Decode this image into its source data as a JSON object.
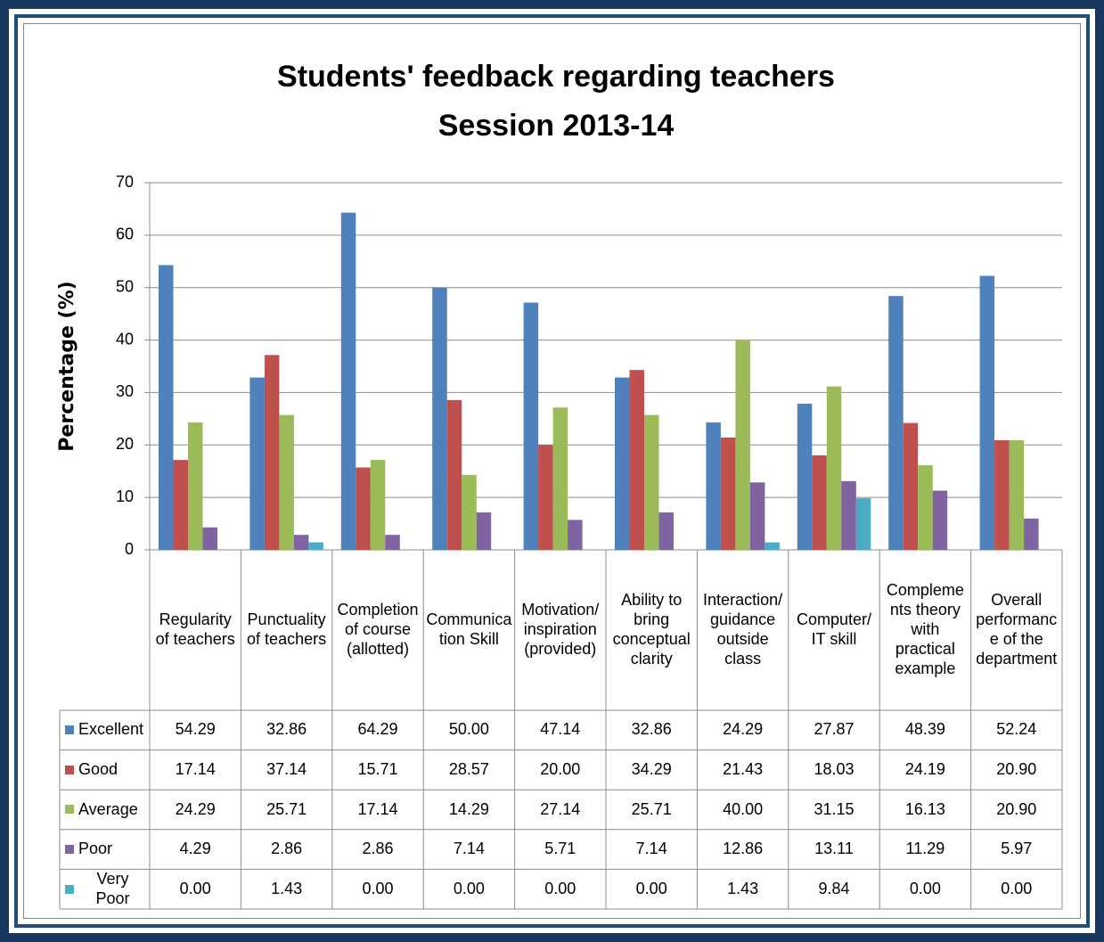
{
  "chart_data": {
    "type": "bar",
    "title": "Students' feedback regarding teachers",
    "subtitle": "Session 2013-14",
    "y_label": "Percentage (%)",
    "categories": [
      "Regularity of teachers",
      "Punctuality of teachers",
      "Completion of course (allotted)",
      "Communication Skill",
      "Motivation/ inspiration (provided)",
      "Ability to bring conceptual clarity",
      "Interaction/ guidance outside class",
      "Computer/ IT skill",
      "Complements theory with practical example",
      "Overall performance of the department"
    ],
    "series": [
      {
        "name": "Excellent",
        "color": "#4f81bd",
        "values": [
          54.29,
          32.86,
          64.29,
          50,
          47.14,
          32.86,
          24.29,
          27.87,
          48.39,
          52.24
        ],
        "value_labels": [
          "54.29",
          "32.86",
          "64.29",
          "50.00",
          "47.14",
          "32.86",
          "24.29",
          "27.87",
          "48.39",
          "52.24"
        ]
      },
      {
        "name": "Good",
        "color": "#c0504d",
        "values": [
          17.14,
          37.14,
          15.71,
          28.57,
          20,
          34.29,
          21.43,
          18.03,
          24.19,
          20.9
        ],
        "value_labels": [
          "17.14",
          "37.14",
          "15.71",
          "28.57",
          "20.00",
          "34.29",
          "21.43",
          "18.03",
          "24.19",
          "20.90"
        ]
      },
      {
        "name": "Average",
        "color": "#9bbb59",
        "values": [
          24.29,
          25.71,
          17.14,
          14.29,
          27.14,
          25.71,
          40,
          31.15,
          16.13,
          20.9
        ],
        "value_labels": [
          "24.29",
          "25.71",
          "17.14",
          "14.29",
          "27.14",
          "25.71",
          "40.00",
          "31.15",
          "16.13",
          "20.90"
        ]
      },
      {
        "name": "Poor",
        "color": "#8064a2",
        "values": [
          4.29,
          2.86,
          2.86,
          7.14,
          5.71,
          7.14,
          12.86,
          13.11,
          11.29,
          5.97
        ],
        "value_labels": [
          "4.29",
          "2.86",
          "2.86",
          "7.14",
          "5.71",
          "7.14",
          "12.86",
          "13.11",
          "11.29",
          "5.97"
        ]
      },
      {
        "name": "Very Poor",
        "color": "#4bacc6",
        "values": [
          0,
          1.43,
          0,
          0,
          0,
          0,
          1.43,
          9.84,
          0,
          0
        ],
        "value_labels": [
          "0.00",
          "1.43",
          "0.00",
          "0.00",
          "0.00",
          "0.00",
          "1.43",
          "9.84",
          "0.00",
          "0.00"
        ]
      }
    ],
    "ylim": [
      0,
      70
    ],
    "yticks": [
      0,
      10,
      20,
      30,
      40,
      50,
      60,
      70
    ],
    "grid": true
  }
}
